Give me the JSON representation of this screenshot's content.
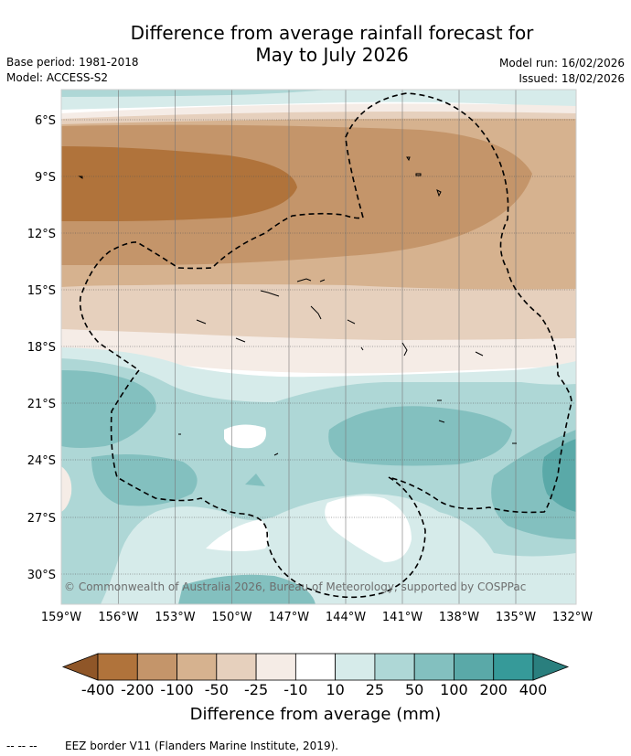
{
  "title": {
    "line1": "Difference from average rainfall forecast for",
    "line2": "May to July 2026"
  },
  "meta": {
    "base_period": "Base period: 1981-2018",
    "model": "Model: ACCESS-S2",
    "model_run": "Model run: 16/02/2026",
    "issued": "Issued: 18/02/2026"
  },
  "axes": {
    "lat_labels": [
      "6°S",
      "9°S",
      "12°S",
      "15°S",
      "18°S",
      "21°S",
      "24°S",
      "27°S",
      "30°S"
    ],
    "lon_labels": [
      "159°W",
      "156°W",
      "153°W",
      "150°W",
      "147°W",
      "144°W",
      "141°W",
      "138°W",
      "135°W",
      "132°W"
    ]
  },
  "copyright": "© Commonwealth of Australia 2026, Bureau of Meteorology, supported by COSPPac",
  "colorbar": {
    "labels": [
      "-400",
      "-200",
      "-100",
      "-50",
      "-25",
      "-10",
      "10",
      "25",
      "50",
      "100",
      "200",
      "400"
    ],
    "colors": [
      "#8f5628",
      "#b0733b",
      "#c4956a",
      "#d6b28f",
      "#e6d0bd",
      "#f5ece6",
      "#ffffff",
      "#d6ebea",
      "#aed7d6",
      "#83c0bf",
      "#5aa9a8",
      "#369a99",
      "#2a7f7e"
    ],
    "title": "Difference from average (mm)"
  },
  "legend": {
    "eez_symbol": "-- -- --",
    "eez_text": "EEZ border V11 (Flanders Marine Institute, 2019)."
  }
}
